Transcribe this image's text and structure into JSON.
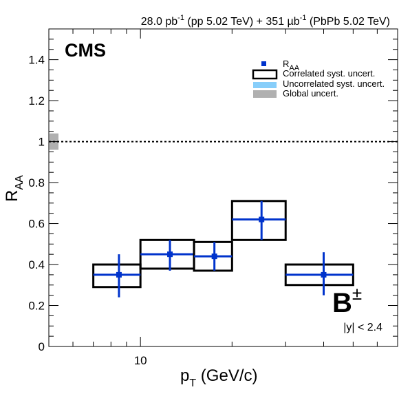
{
  "header": {
    "lumi_pp": "28.0 pb",
    "lumi_pp_exp": "-1",
    "lumi_pp_energy": " (pp 5.02 TeV) + 351 µb",
    "lumi_pbpb_exp": "-1",
    "lumi_pbpb_energy": " (PbPb 5.02 TeV)"
  },
  "labels": {
    "experiment": "CMS",
    "particle": "B",
    "particle_sup": "±",
    "rapidity": "|y| < 2.4"
  },
  "legend": {
    "raa_main": "R",
    "raa_sub": "AA",
    "correlated": "Correlated syst. uncert.",
    "uncorrelated": "Uncorrelated syst. uncert.",
    "global": "Global uncert."
  },
  "colors": {
    "marker": "#0033cc",
    "correlated_box": "#000000",
    "uncorrelated": "#87cefa",
    "global": "#b0b0b0"
  },
  "chart_data": {
    "type": "scatter",
    "xlabel": "p",
    "xlabel_sub": "T",
    "xlabel_unit": " (GeV/c)",
    "ylabel": "R",
    "ylabel_sub": "AA",
    "x_scale": "log",
    "xlim": [
      5,
      70
    ],
    "ylim": [
      0,
      1.55
    ],
    "x_tick_labels": [
      {
        "value": 10,
        "label": "10"
      }
    ],
    "y_tick_labels": [
      {
        "value": 0,
        "label": "0"
      },
      {
        "value": 0.2,
        "label": "0.2"
      },
      {
        "value": 0.4,
        "label": "0.4"
      },
      {
        "value": 0.6,
        "label": "0.6"
      },
      {
        "value": 0.8,
        "label": "0.8"
      },
      {
        "value": 1,
        "label": "1"
      },
      {
        "value": 1.2,
        "label": "1.2"
      },
      {
        "value": 1.4,
        "label": "1.4"
      }
    ],
    "reference_line": 1.0,
    "global_uncertainty": [
      0.96,
      1.04
    ],
    "points": [
      {
        "x": 8.5,
        "x_low": 7,
        "x_high": 10,
        "y": 0.35,
        "stat_low": 0.24,
        "stat_high": 0.45,
        "syst_low": 0.29,
        "syst_high": 0.4
      },
      {
        "x": 12.5,
        "x_low": 10,
        "x_high": 15,
        "y": 0.45,
        "stat_low": 0.37,
        "stat_high": 0.52,
        "syst_low": 0.38,
        "syst_high": 0.52
      },
      {
        "x": 17.5,
        "x_low": 15,
        "x_high": 20,
        "y": 0.44,
        "stat_low": 0.37,
        "stat_high": 0.51,
        "syst_low": 0.37,
        "syst_high": 0.51
      },
      {
        "x": 25,
        "x_low": 20,
        "x_high": 30,
        "y": 0.62,
        "stat_low": 0.52,
        "stat_high": 0.71,
        "syst_low": 0.52,
        "syst_high": 0.71
      },
      {
        "x": 40,
        "x_low": 30,
        "x_high": 50,
        "y": 0.35,
        "stat_low": 0.25,
        "stat_high": 0.46,
        "syst_low": 0.3,
        "syst_high": 0.4
      }
    ]
  }
}
